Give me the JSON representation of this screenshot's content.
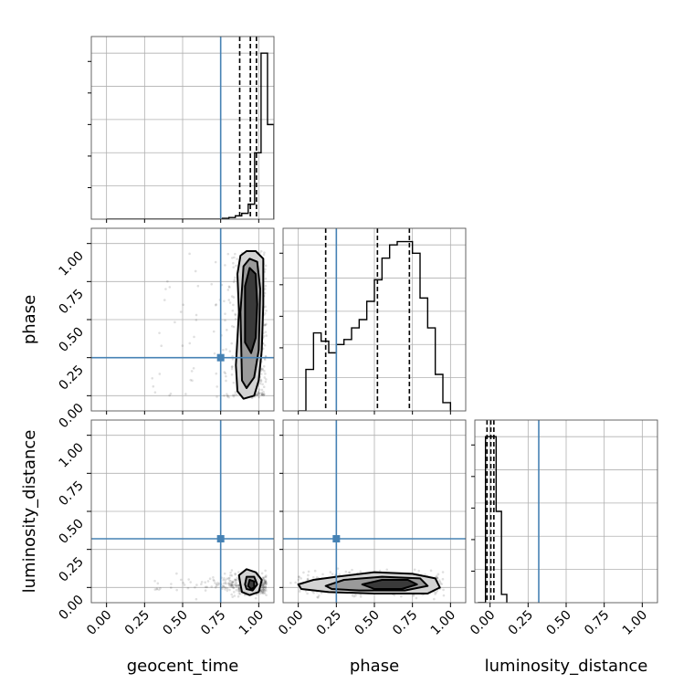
{
  "chart_data": {
    "type": "corner",
    "parameters": [
      "geocent_time",
      "phase",
      "luminosity_distance"
    ],
    "truth": {
      "geocent_time": 0.75,
      "phase": 0.25,
      "luminosity_distance": 0.32
    },
    "truth_color": "#4682b4",
    "ticks": [
      0.0,
      0.25,
      0.5,
      0.75,
      1.0
    ],
    "tick_labels": [
      "0.00",
      "0.25",
      "0.50",
      "0.75",
      "1.00"
    ],
    "axis_range": [
      -0.1,
      1.1
    ],
    "grid": true,
    "histograms": {
      "geocent_time": {
        "range": [
          0.0,
          1.1
        ],
        "heights": [
          0,
          0,
          0,
          0,
          0,
          0,
          0,
          0,
          0,
          0,
          0,
          0,
          0,
          0,
          0,
          0,
          0,
          0,
          0.5,
          1,
          2,
          3.5,
          9,
          40,
          100,
          57
        ],
        "quantiles": [
          0.875,
          0.945,
          0.985
        ],
        "ylim": [
          0,
          110
        ]
      },
      "phase": {
        "range": [
          0.0,
          1.0
        ],
        "heights": [
          0,
          25,
          47,
          42,
          35,
          40,
          43,
          50,
          55,
          66,
          79,
          92,
          100,
          102,
          102,
          95,
          68,
          50,
          22,
          5
        ],
        "quantiles": [
          0.18,
          0.52,
          0.73
        ],
        "ylim": [
          0,
          110
        ]
      },
      "luminosity_distance": {
        "range": [
          -0.1,
          1.1
        ],
        "heights": [
          0,
          0,
          100,
          100,
          55,
          5
        ],
        "bin_edges": [
          -0.08,
          -0.065,
          -0.03,
          0.005,
          0.04,
          0.075,
          0.11
        ],
        "quantiles": [
          -0.02,
          0.005,
          0.025
        ],
        "ylim": [
          0,
          110
        ]
      }
    },
    "pairs": [
      {
        "x": "geocent_time",
        "y": "phase",
        "contours": [
          {
            "level": "outer",
            "points": [
              [
                0.86,
                0.03
              ],
              [
                0.85,
                0.2
              ],
              [
                0.87,
                0.55
              ],
              [
                0.86,
                0.8
              ],
              [
                0.88,
                0.92
              ],
              [
                0.92,
                0.95
              ],
              [
                0.98,
                0.95
              ],
              [
                1.03,
                0.9
              ],
              [
                1.03,
                0.6
              ],
              [
                1.02,
                0.3
              ],
              [
                1.0,
                0.1
              ],
              [
                0.97,
                0.0
              ],
              [
                0.9,
                -0.02
              ]
            ]
          },
          {
            "level": "middle",
            "points": [
              [
                0.89,
                0.1
              ],
              [
                0.88,
                0.55
              ],
              [
                0.9,
                0.85
              ],
              [
                0.94,
                0.9
              ],
              [
                0.99,
                0.88
              ],
              [
                1.01,
                0.7
              ],
              [
                1.0,
                0.3
              ],
              [
                0.97,
                0.12
              ],
              [
                0.92,
                0.05
              ]
            ]
          },
          {
            "level": "inner",
            "points": [
              [
                0.91,
                0.35
              ],
              [
                0.91,
                0.72
              ],
              [
                0.94,
                0.84
              ],
              [
                0.98,
                0.8
              ],
              [
                0.99,
                0.6
              ],
              [
                0.98,
                0.38
              ],
              [
                0.95,
                0.28
              ]
            ]
          }
        ]
      },
      {
        "x": "geocent_time",
        "y": "luminosity_distance",
        "contours": [
          {
            "level": "outer",
            "points": [
              [
                0.88,
                0.02
              ],
              [
                0.87,
                0.08
              ],
              [
                0.92,
                0.12
              ],
              [
                0.98,
                0.1
              ],
              [
                1.02,
                0.05
              ],
              [
                1.0,
                -0.03
              ],
              [
                0.94,
                -0.05
              ],
              [
                0.89,
                -0.03
              ]
            ]
          },
          {
            "level": "middle",
            "points": [
              [
                0.91,
                0.02
              ],
              [
                0.92,
                0.07
              ],
              [
                0.97,
                0.07
              ],
              [
                0.99,
                0.02
              ],
              [
                0.96,
                -0.02
              ],
              [
                0.92,
                -0.01
              ]
            ]
          },
          {
            "level": "inner",
            "points": [
              [
                0.93,
                0.01
              ],
              [
                0.94,
                0.05
              ],
              [
                0.97,
                0.04
              ],
              [
                0.97,
                0.0
              ],
              [
                0.95,
                -0.01
              ]
            ]
          }
        ]
      },
      {
        "x": "phase",
        "y": "luminosity_distance",
        "contours": [
          {
            "level": "outer",
            "points": [
              [
                0.0,
                0.02
              ],
              [
                0.1,
                0.05
              ],
              [
                0.25,
                0.07
              ],
              [
                0.5,
                0.1
              ],
              [
                0.75,
                0.09
              ],
              [
                0.9,
                0.06
              ],
              [
                0.93,
                0.0
              ],
              [
                0.85,
                -0.04
              ],
              [
                0.5,
                -0.04
              ],
              [
                0.2,
                -0.03
              ],
              [
                0.02,
                -0.01
              ]
            ]
          },
          {
            "level": "middle",
            "points": [
              [
                0.18,
                0.01
              ],
              [
                0.3,
                0.05
              ],
              [
                0.55,
                0.07
              ],
              [
                0.8,
                0.06
              ],
              [
                0.85,
                0.01
              ],
              [
                0.7,
                -0.02
              ],
              [
                0.4,
                -0.02
              ],
              [
                0.22,
                -0.01
              ]
            ]
          },
          {
            "level": "inner",
            "points": [
              [
                0.42,
                0.02
              ],
              [
                0.55,
                0.05
              ],
              [
                0.72,
                0.05
              ],
              [
                0.78,
                0.02
              ],
              [
                0.68,
                -0.01
              ],
              [
                0.5,
                -0.01
              ]
            ]
          }
        ]
      }
    ]
  }
}
